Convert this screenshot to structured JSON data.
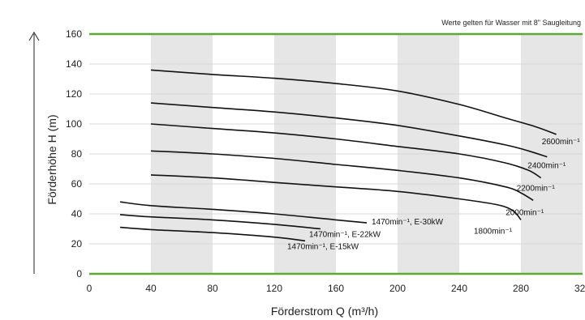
{
  "chart_data": {
    "type": "line",
    "note": "Werte gelten für Wasser mit 8\" Saugleitung",
    "xlabel": "Förderstrom Q (m³/h)",
    "ylabel": "Förderhöhe H (m)",
    "xlim": [
      0,
      320
    ],
    "ylim": [
      0,
      160
    ],
    "x_ticks": [
      "0",
      "40",
      "80",
      "120",
      "160",
      "200",
      "240",
      "280",
      "320"
    ],
    "y_ticks": [
      "0",
      "20",
      "40",
      "60",
      "80",
      "100",
      "120",
      "140",
      "160"
    ],
    "shaded_bands_x": [
      [
        40,
        80
      ],
      [
        120,
        160
      ],
      [
        200,
        240
      ],
      [
        280,
        320
      ]
    ],
    "colors": {
      "grid_green": "#5aab2f",
      "band": "#e6e6e6",
      "curve": "#111111",
      "axis": "#222222"
    },
    "series": [
      {
        "name": "2600min⁻¹",
        "x": [
          40,
          80,
          120,
          160,
          200,
          240,
          270,
          290,
          303
        ],
        "y": [
          136,
          133,
          130.5,
          127,
          122,
          113,
          104,
          98,
          93
        ]
      },
      {
        "name": "2400min⁻¹",
        "x": [
          40,
          80,
          120,
          160,
          200,
          240,
          270,
          285,
          297
        ],
        "y": [
          114,
          111,
          108,
          104,
          99,
          92,
          86,
          82,
          78
        ]
      },
      {
        "name": "2200min⁻¹",
        "x": [
          40,
          80,
          120,
          160,
          200,
          240,
          270,
          285,
          293
        ],
        "y": [
          100,
          97,
          94,
          90,
          85,
          80,
          74,
          69,
          64
        ]
      },
      {
        "name": "2000min⁻¹",
        "x": [
          40,
          80,
          120,
          160,
          200,
          240,
          270,
          280,
          288
        ],
        "y": [
          82,
          80,
          77,
          73,
          69,
          64,
          58,
          54,
          49
        ]
      },
      {
        "name": "1800min⁻¹",
        "x": [
          40,
          80,
          120,
          160,
          200,
          240,
          265,
          275,
          280
        ],
        "y": [
          66,
          64,
          61,
          58,
          55,
          50,
          46,
          42,
          36
        ]
      },
      {
        "name": "1470min⁻¹, E-30kW",
        "x": [
          20,
          40,
          80,
          120,
          160,
          180
        ],
        "y": [
          48,
          45.5,
          43,
          40,
          36,
          34
        ]
      },
      {
        "name": "1470min⁻¹, E-22kW",
        "x": [
          20,
          40,
          80,
          120,
          150
        ],
        "y": [
          39.5,
          38,
          36,
          33,
          30
        ]
      },
      {
        "name": "1470min⁻¹, E-15kW",
        "x": [
          20,
          40,
          80,
          120,
          140
        ],
        "y": [
          31,
          29.5,
          27.5,
          24.5,
          22
        ]
      }
    ]
  }
}
